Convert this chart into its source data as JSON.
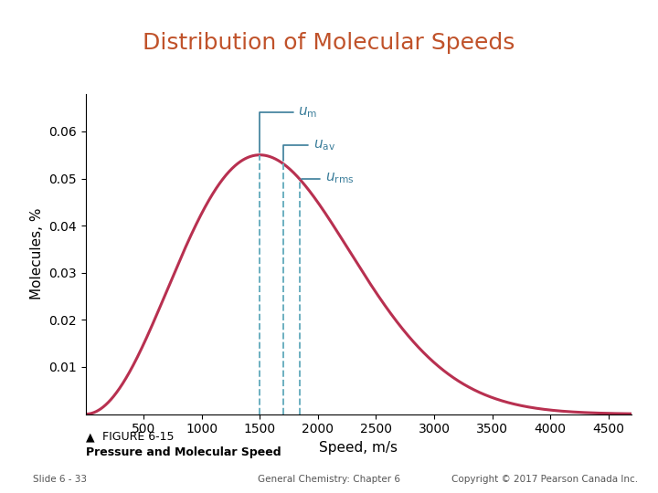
{
  "title": "Distribution of Molecular Speeds",
  "title_color": "#C0522A",
  "title_fontsize": 18,
  "xlabel": "Speed, m/s",
  "ylabel": "Molecules, %",
  "xlim": [
    0,
    4700
  ],
  "ylim": [
    0,
    0.068
  ],
  "xticks": [
    500,
    1000,
    1500,
    2000,
    2500,
    3000,
    3500,
    4000,
    4500
  ],
  "yticks": [
    0.01,
    0.02,
    0.03,
    0.04,
    0.05,
    0.06
  ],
  "curve_color": "#B83050",
  "curve_linewidth": 2.2,
  "dashed_color": "#6BAFC0",
  "dashed_linewidth": 1.4,
  "u_m": 1500,
  "u_av": 1700,
  "u_rms": 1840,
  "annotation_color": "#3A7D9A",
  "ann_fontsize": 11,
  "footer_left": "Slide 6 - 33",
  "footer_center": "General Chemistry: Chapter 6",
  "footer_right": "Copyright © 2017 Pearson Canada Inc.",
  "figure_caption_triangle": "▲",
  "figure_caption_label": "FIGURE 6-15",
  "figure_caption_text": "Pressure and Molecular Speed",
  "background_color": "#FFFFFF"
}
